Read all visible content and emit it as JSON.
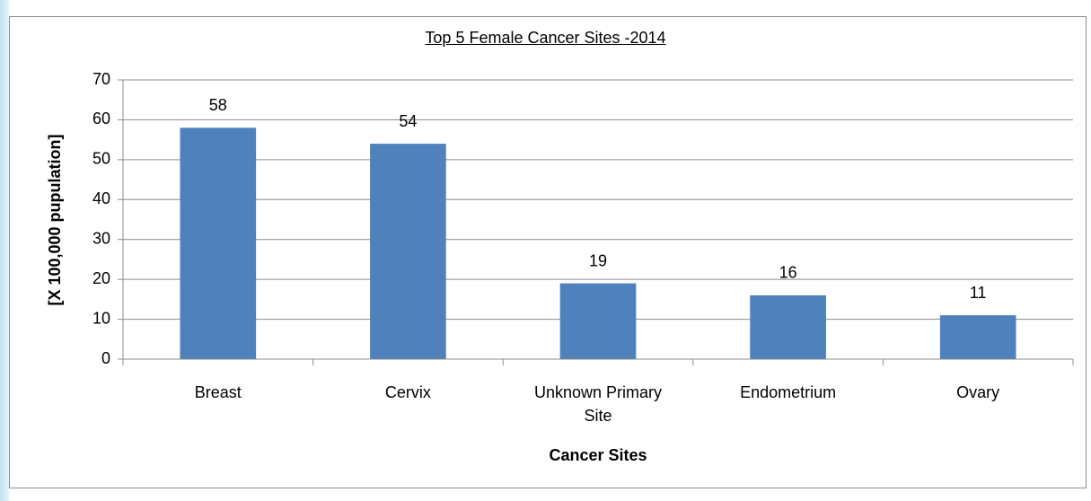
{
  "chart_data": {
    "type": "bar",
    "title": "Top 5 Female Cancer Sites -2014",
    "x_label": "Cancer Sites",
    "y_label": "[X 100,000 pupulation]",
    "categories": [
      "Breast",
      "Cervix",
      "Unknown Primary Site",
      "Endometrium",
      "Ovary"
    ],
    "values": [
      58,
      54,
      19,
      16,
      11
    ],
    "color": "#4f81bd",
    "ylim": [
      0,
      70
    ],
    "yticks": [
      0,
      10,
      20,
      30,
      40,
      50,
      60,
      70
    ],
    "grid": true
  }
}
